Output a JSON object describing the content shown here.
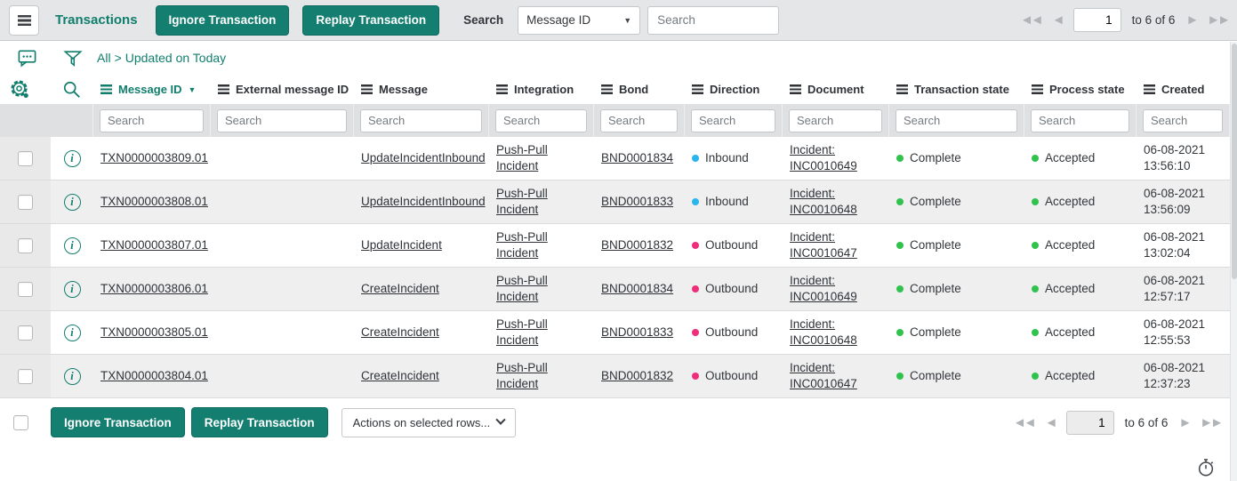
{
  "header": {
    "title": "Transactions",
    "ignore_label": "Ignore Transaction",
    "replay_label": "Replay Transaction",
    "search_label": "Search",
    "search_field_selected": "Message ID",
    "search_placeholder": "Search"
  },
  "pagination_top": {
    "page_value": "1",
    "range_text": "to 6 of 6"
  },
  "pagination_bottom": {
    "page_value": "1",
    "range_text": "to 6 of 6"
  },
  "breadcrumb": {
    "items": [
      "All",
      "Updated on Today"
    ],
    "separator": ">"
  },
  "footer": {
    "ignore_label": "Ignore Transaction",
    "replay_label": "Replay Transaction",
    "actions_dropdown": "Actions on selected rows..."
  },
  "table": {
    "filter_placeholder": "Search",
    "columns": [
      {
        "key": "message_id",
        "label": "Message ID",
        "sorted": "desc"
      },
      {
        "key": "external_message_id",
        "label": "External message ID"
      },
      {
        "key": "message",
        "label": "Message"
      },
      {
        "key": "integration",
        "label": "Integration"
      },
      {
        "key": "bond",
        "label": "Bond"
      },
      {
        "key": "direction",
        "label": "Direction"
      },
      {
        "key": "document",
        "label": "Document"
      },
      {
        "key": "transaction_state",
        "label": "Transaction state"
      },
      {
        "key": "process_state",
        "label": "Process state"
      },
      {
        "key": "created",
        "label": "Created"
      }
    ],
    "rows": [
      {
        "message_id": "TXN0000003809.01",
        "external_message_id": "",
        "message": "UpdateIncidentInbound",
        "integration": "Push-Pull Incident",
        "bond": "BND0001834",
        "direction": "Inbound",
        "doc_label": "Incident:",
        "doc_number": "INC0010649",
        "transaction_state": "Complete",
        "process_state": "Accepted",
        "created_date": "06-08-2021",
        "created_time": "13:56:10"
      },
      {
        "message_id": "TXN0000003808.01",
        "external_message_id": "",
        "message": "UpdateIncidentInbound",
        "integration": "Push-Pull Incident",
        "bond": "BND0001833",
        "direction": "Inbound",
        "doc_label": "Incident:",
        "doc_number": "INC0010648",
        "transaction_state": "Complete",
        "process_state": "Accepted",
        "created_date": "06-08-2021",
        "created_time": "13:56:09"
      },
      {
        "message_id": "TXN0000003807.01",
        "external_message_id": "",
        "message": "UpdateIncident",
        "integration": "Push-Pull Incident",
        "bond": "BND0001832",
        "direction": "Outbound",
        "doc_label": "Incident:",
        "doc_number": "INC0010647",
        "transaction_state": "Complete",
        "process_state": "Accepted",
        "created_date": "06-08-2021",
        "created_time": "13:02:04"
      },
      {
        "message_id": "TXN0000003806.01",
        "external_message_id": "",
        "message": "CreateIncident",
        "integration": "Push-Pull Incident",
        "bond": "BND0001834",
        "direction": "Outbound",
        "doc_label": "Incident:",
        "doc_number": "INC0010649",
        "transaction_state": "Complete",
        "process_state": "Accepted",
        "created_date": "06-08-2021",
        "created_time": "12:57:17"
      },
      {
        "message_id": "TXN0000003805.01",
        "external_message_id": "",
        "message": "CreateIncident",
        "integration": "Push-Pull Incident",
        "bond": "BND0001833",
        "direction": "Outbound",
        "doc_label": "Incident:",
        "doc_number": "INC0010648",
        "transaction_state": "Complete",
        "process_state": "Accepted",
        "created_date": "06-08-2021",
        "created_time": "12:55:53"
      },
      {
        "message_id": "TXN0000003804.01",
        "external_message_id": "",
        "message": "CreateIncident",
        "integration": "Push-Pull Incident",
        "bond": "BND0001832",
        "direction": "Outbound",
        "doc_label": "Incident:",
        "doc_number": "INC0010647",
        "transaction_state": "Complete",
        "process_state": "Accepted",
        "created_date": "06-08-2021",
        "created_time": "12:37:23"
      }
    ]
  },
  "colors": {
    "accent_teal": "#147f71",
    "direction_colors": {
      "Inbound": "#2ab5ec",
      "Outbound": "#ee2e7b"
    },
    "state_colors": {
      "Complete": "#31c24e",
      "Accepted": "#31c24e"
    }
  }
}
